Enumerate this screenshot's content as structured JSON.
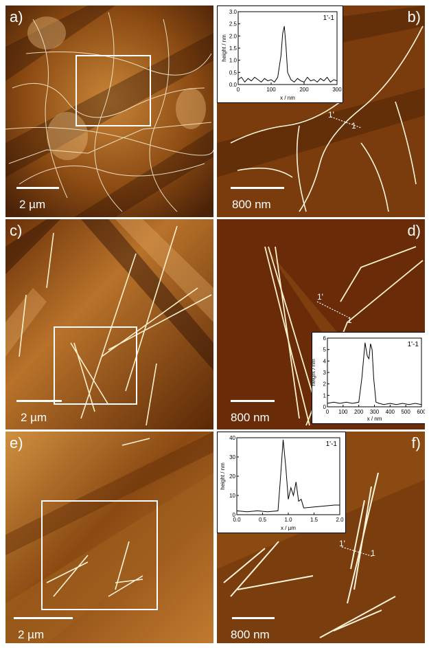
{
  "panels": {
    "a": {
      "label": "a)",
      "scale": "2 µm"
    },
    "b": {
      "label": "b)",
      "scale": "800 nm",
      "marker_start": "1'",
      "marker_end": "1"
    },
    "c": {
      "label": "c)",
      "scale": "2 µm"
    },
    "d": {
      "label": "d)",
      "scale": "800 nm",
      "marker_start": "1'",
      "marker_end": "1"
    },
    "e": {
      "label": "e)",
      "scale": "2 µm"
    },
    "f": {
      "label": "f)",
      "scale": "800 nm",
      "marker_start": "1'",
      "marker_end": "1"
    }
  },
  "colors": {
    "afm_dark": "#3a1a05",
    "afm_mid": "#8a4a12",
    "afm_light": "#d89a4a",
    "fiber": "#fff6dd"
  },
  "chart_data": [
    {
      "type": "line",
      "panel": "b",
      "title": "1'-1",
      "xlabel": "x / nm",
      "ylabel": "height / nm",
      "xlim": [
        0,
        300
      ],
      "ylim": [
        0,
        3.0
      ],
      "xticks": [
        "0",
        "100",
        "200",
        "300"
      ],
      "yticks": [
        "0.0",
        "0.5",
        "1.0",
        "1.5",
        "2.0",
        "2.5",
        "3.0"
      ],
      "x": [
        0,
        10,
        20,
        30,
        40,
        50,
        60,
        70,
        80,
        90,
        100,
        110,
        120,
        130,
        135,
        140,
        145,
        150,
        160,
        170,
        180,
        190,
        200,
        210,
        220,
        230,
        240,
        250,
        260,
        270,
        280,
        290,
        300
      ],
      "y": [
        0.2,
        0.3,
        0.1,
        0.25,
        0.15,
        0.3,
        0.2,
        0.1,
        0.25,
        0.15,
        0.2,
        0.1,
        0.3,
        1.2,
        2.1,
        2.4,
        1.6,
        0.5,
        0.2,
        0.1,
        0.25,
        0.15,
        0.1,
        0.3,
        0.15,
        0.2,
        0.1,
        0.25,
        0.15,
        0.3,
        0.1,
        0.2,
        0.15
      ]
    },
    {
      "type": "line",
      "panel": "d",
      "title": "1'-1",
      "xlabel": "x / nm",
      "ylabel": "height / nm",
      "xlim": [
        0,
        600
      ],
      "ylim": [
        0,
        6
      ],
      "xticks": [
        "0",
        "100",
        "200",
        "300",
        "400",
        "500",
        "600"
      ],
      "yticks": [
        "0",
        "1",
        "2",
        "3",
        "4",
        "5",
        "6"
      ],
      "x": [
        0,
        40,
        80,
        120,
        160,
        200,
        220,
        240,
        255,
        265,
        275,
        285,
        295,
        310,
        330,
        360,
        400,
        440,
        480,
        520,
        560,
        600
      ],
      "y": [
        0.3,
        0.4,
        0.3,
        0.4,
        0.3,
        0.4,
        2.5,
        5.6,
        4.4,
        4.2,
        5.5,
        5.0,
        2.5,
        0.4,
        0.3,
        0.2,
        0.3,
        0.2,
        0.3,
        0.2,
        0.3,
        0.2
      ]
    },
    {
      "type": "line",
      "panel": "f",
      "title": "1'-1",
      "xlabel": "x / µm",
      "ylabel": "height / nm",
      "xlim": [
        0,
        2.0
      ],
      "ylim": [
        0,
        40
      ],
      "xticks": [
        "0.0",
        "0.5",
        "1.0",
        "1.5",
        "2.0"
      ],
      "yticks": [
        "0",
        "10",
        "20",
        "30",
        "40"
      ],
      "x": [
        0.0,
        0.2,
        0.4,
        0.6,
        0.8,
        0.85,
        0.9,
        0.95,
        1.0,
        1.05,
        1.1,
        1.15,
        1.2,
        1.25,
        1.3,
        1.5,
        1.7,
        1.9,
        2.0
      ],
      "y": [
        2,
        1.5,
        2,
        1.5,
        2,
        20,
        39,
        25,
        8,
        14,
        10,
        17,
        7,
        8,
        3.5,
        4,
        4.5,
        5,
        5
      ]
    }
  ]
}
